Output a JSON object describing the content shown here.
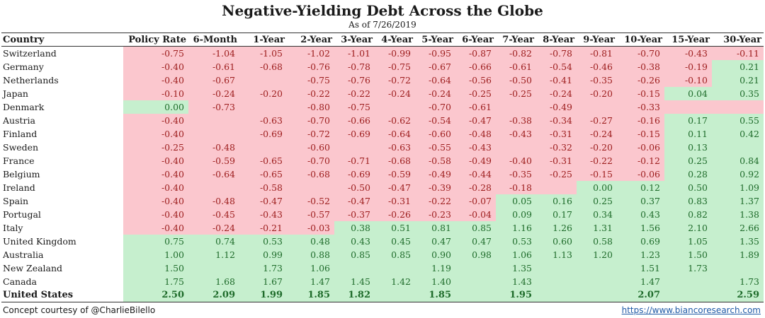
{
  "header": {
    "title": "Negative-Yielding Debt Across the Globe",
    "subtitle": "As of 7/26/2019"
  },
  "colors": {
    "negative_fill": "#fbc7ce",
    "positive_fill": "#c6efce"
  },
  "table": {
    "columns": [
      "Country",
      "Policy Rate",
      "6-Month",
      "1-Year",
      "2-Year",
      "3-Year",
      "4-Year",
      "5-Year",
      "6-Year",
      "7-Year",
      "8-Year",
      "9-Year",
      "10-Year",
      "15-Year",
      "30-Year"
    ],
    "rows": [
      {
        "country": "Switzerland",
        "values": [
          "-0.75",
          "-1.04",
          "-1.05",
          "-1.02",
          "-1.01",
          "-0.99",
          "-0.95",
          "-0.87",
          "-0.82",
          "-0.78",
          "-0.81",
          "-0.70",
          "-0.43",
          "-0.11"
        ]
      },
      {
        "country": "Germany",
        "values": [
          "-0.40",
          "-0.61",
          "-0.68",
          "-0.76",
          "-0.78",
          "-0.75",
          "-0.67",
          "-0.66",
          "-0.61",
          "-0.54",
          "-0.46",
          "-0.38",
          "-0.19",
          "0.21"
        ]
      },
      {
        "country": "Netherlands",
        "values": [
          "-0.40",
          "-0.67",
          "",
          "-0.75",
          "-0.76",
          "-0.72",
          "-0.64",
          "-0.56",
          "-0.50",
          "-0.41",
          "-0.35",
          "-0.26",
          "-0.10",
          "0.21"
        ]
      },
      {
        "country": "Japan",
        "values": [
          "-0.10",
          "-0.24",
          "-0.20",
          "-0.22",
          "-0.22",
          "-0.24",
          "-0.24",
          "-0.25",
          "-0.25",
          "-0.24",
          "-0.20",
          "-0.15",
          "0.04",
          "0.35"
        ]
      },
      {
        "country": "Denmark",
        "values": [
          "0.00",
          "-0.73",
          "",
          "-0.80",
          "-0.75",
          "",
          "-0.70",
          "-0.61",
          "",
          "-0.49",
          "",
          "-0.33",
          "",
          ""
        ]
      },
      {
        "country": "Austria",
        "values": [
          "-0.40",
          "",
          "-0.63",
          "-0.70",
          "-0.66",
          "-0.62",
          "-0.54",
          "-0.47",
          "-0.38",
          "-0.34",
          "-0.27",
          "-0.16",
          "0.17",
          "0.55"
        ]
      },
      {
        "country": "Finland",
        "values": [
          "-0.40",
          "",
          "-0.69",
          "-0.72",
          "-0.69",
          "-0.64",
          "-0.60",
          "-0.48",
          "-0.43",
          "-0.31",
          "-0.24",
          "-0.15",
          "0.11",
          "0.42"
        ]
      },
      {
        "country": "Sweden",
        "values": [
          "-0.25",
          "-0.48",
          "",
          "-0.60",
          "",
          "-0.63",
          "-0.55",
          "-0.43",
          "",
          "-0.32",
          "-0.20",
          "-0.06",
          "0.13",
          ""
        ]
      },
      {
        "country": "France",
        "values": [
          "-0.40",
          "-0.59",
          "-0.65",
          "-0.70",
          "-0.71",
          "-0.68",
          "-0.58",
          "-0.49",
          "-0.40",
          "-0.31",
          "-0.22",
          "-0.12",
          "0.25",
          "0.84"
        ]
      },
      {
        "country": "Belgium",
        "values": [
          "-0.40",
          "-0.64",
          "-0.65",
          "-0.68",
          "-0.69",
          "-0.59",
          "-0.49",
          "-0.44",
          "-0.35",
          "-0.25",
          "-0.15",
          "-0.06",
          "0.28",
          "0.92"
        ]
      },
      {
        "country": "Ireland",
        "values": [
          "-0.40",
          "",
          "-0.58",
          "",
          "-0.50",
          "-0.47",
          "-0.39",
          "-0.28",
          "-0.18",
          "",
          "0.00",
          "0.12",
          "0.50",
          "1.09"
        ]
      },
      {
        "country": "Spain",
        "values": [
          "-0.40",
          "-0.48",
          "-0.47",
          "-0.52",
          "-0.47",
          "-0.31",
          "-0.22",
          "-0.07",
          "0.05",
          "0.16",
          "0.25",
          "0.37",
          "0.83",
          "1.37"
        ]
      },
      {
        "country": "Portugal",
        "values": [
          "-0.40",
          "-0.45",
          "-0.43",
          "-0.57",
          "-0.37",
          "-0.26",
          "-0.23",
          "-0.04",
          "0.09",
          "0.17",
          "0.34",
          "0.43",
          "0.82",
          "1.38"
        ]
      },
      {
        "country": "Italy",
        "values": [
          "-0.40",
          "-0.24",
          "-0.21",
          "-0.03",
          "0.38",
          "0.51",
          "0.81",
          "0.85",
          "1.16",
          "1.26",
          "1.31",
          "1.56",
          "2.10",
          "2.66"
        ]
      },
      {
        "country": "United Kingdom",
        "values": [
          "0.75",
          "0.74",
          "0.53",
          "0.48",
          "0.43",
          "0.45",
          "0.47",
          "0.47",
          "0.53",
          "0.60",
          "0.58",
          "0.69",
          "1.05",
          "1.35"
        ]
      },
      {
        "country": "Australia",
        "values": [
          "1.00",
          "1.12",
          "0.99",
          "0.88",
          "0.85",
          "0.85",
          "0.90",
          "0.98",
          "1.06",
          "1.13",
          "1.20",
          "1.23",
          "1.50",
          "1.89"
        ]
      },
      {
        "country": "New Zealand",
        "values": [
          "1.50",
          "",
          "1.73",
          "1.06",
          "",
          "",
          "1.19",
          "",
          "1.35",
          "",
          "",
          "1.51",
          "1.73",
          ""
        ]
      },
      {
        "country": "Canada",
        "values": [
          "1.75",
          "1.68",
          "1.67",
          "1.47",
          "1.45",
          "1.42",
          "1.40",
          "",
          "1.43",
          "",
          "",
          "1.47",
          "",
          "1.73"
        ]
      },
      {
        "country": "United States",
        "values": [
          "2.50",
          "2.09",
          "1.99",
          "1.85",
          "1.82",
          "",
          "1.85",
          "",
          "1.95",
          "",
          "",
          "2.07",
          "",
          "2.59"
        ],
        "bold": true
      }
    ]
  },
  "footer": {
    "credit": "Concept courtesy of @CharlieBilello",
    "url": "https://www.biancoresearch.com"
  }
}
